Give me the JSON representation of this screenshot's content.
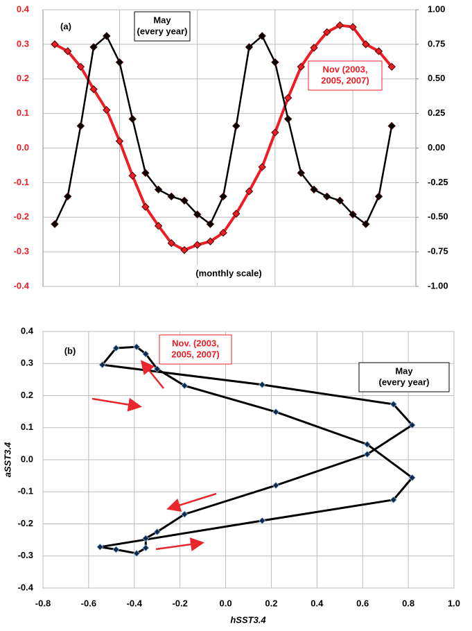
{
  "chart_data": [
    {
      "type": "line",
      "label": "(a)",
      "categories": [
        null,
        null,
        null,
        null,
        null,
        null,
        null,
        null,
        null,
        null,
        null,
        null,
        null,
        null,
        null,
        null,
        null,
        null,
        null,
        null,
        null,
        null,
        null,
        null,
        null,
        null,
        null
      ],
      "series": [
        {
          "color": "#ee1c25",
          "axis": "y",
          "values": [
            0.3,
            0.28,
            0.235,
            0.17,
            0.11,
            0.02,
            -0.08,
            -0.17,
            -0.225,
            -0.275,
            -0.295,
            -0.28,
            -0.27,
            -0.245,
            -0.19,
            -0.125,
            -0.055,
            0.045,
            0.145,
            0.235,
            0.29,
            0.335,
            0.355,
            0.35,
            0.3,
            0.28,
            0.235
          ]
        },
        {
          "color": "#000000",
          "axis": "y2",
          "values": [
            -0.55,
            -0.35,
            0.16,
            0.73,
            0.81,
            0.62,
            0.21,
            -0.18,
            -0.3,
            -0.35,
            -0.38,
            -0.48,
            -0.55,
            -0.35,
            0.16,
            0.73,
            0.81,
            0.62,
            0.21,
            -0.18,
            -0.3,
            -0.35,
            -0.38,
            -0.48,
            -0.55,
            -0.35,
            0.16
          ]
        }
      ],
      "ylim": [
        -0.4,
        0.4
      ],
      "yticks": [
        -0.4,
        -0.3,
        -0.2,
        -0.1,
        {
          "value": 0,
          "label": "0.0"
        },
        0.1,
        0.2,
        0.3,
        0.4
      ],
      "ytick_color": "#ee1c25",
      "y2lim": [
        -1,
        1
      ],
      "y2ticks": [
        {
          "value": -1,
          "label": "-1.00"
        },
        {
          "value": -0.75,
          "label": "-0.75"
        },
        {
          "value": -0.5,
          "label": "-0.50"
        },
        {
          "value": -0.25,
          "label": "-0.25"
        },
        {
          "value": 0,
          "label": "0.00"
        },
        {
          "value": 0.25,
          "label": "0.25"
        },
        {
          "value": 0.5,
          "label": "0.50"
        },
        {
          "value": 0.75,
          "label": "0.75"
        },
        {
          "value": 1,
          "label": "1.00"
        }
      ],
      "grid": true,
      "annotations": [
        {
          "lines": [
            "May",
            "(every year)"
          ],
          "color": "#000000"
        },
        {
          "lines": [
            "Nov (2003,",
            "2005, 2007)"
          ],
          "color": "#ee1c25"
        },
        {
          "lines": [
            "(monthly scale)"
          ],
          "color": "#000000"
        }
      ]
    },
    {
      "type": "scatter",
      "label": "(b)",
      "x": [
        0.735,
        0.16,
        -0.54,
        -0.48,
        -0.39,
        -0.35,
        -0.3,
        -0.18,
        0.22,
        0.62,
        0.817,
        0.735,
        0.16,
        -0.55,
        -0.48,
        -0.39,
        -0.35,
        -0.35,
        -0.3,
        -0.18,
        0.22,
        0.62,
        0.817,
        0.735
      ],
      "y": [
        0.173,
        0.234,
        0.296,
        0.348,
        0.352,
        0.33,
        0.283,
        0.231,
        0.149,
        0.048,
        -0.056,
        -0.125,
        -0.19,
        -0.272,
        -0.28,
        -0.292,
        -0.275,
        -0.245,
        -0.225,
        -0.17,
        -0.08,
        0.017,
        0.108,
        0.173
      ],
      "color": "#000000",
      "xlabel": "hSST3.4",
      "ylabel": "aSST3.4",
      "xlim": [
        -0.8,
        1.0
      ],
      "xticks": [
        -0.8,
        -0.6,
        -0.4,
        -0.2,
        {
          "value": 0,
          "label": "0.0"
        },
        0.2,
        0.4,
        0.6,
        0.8,
        {
          "value": 1,
          "label": "1.0"
        }
      ],
      "ylim": [
        -0.4,
        0.4
      ],
      "yticks": [
        -0.4,
        -0.3,
        -0.2,
        -0.1,
        {
          "value": 0,
          "label": "0.0"
        },
        0.1,
        0.2,
        0.3,
        0.4
      ],
      "grid": true,
      "annotations": [
        {
          "lines": [
            "Nov. (2003,",
            "2005, 2007)"
          ],
          "color": "#ee1c25"
        },
        {
          "lines": [
            "May",
            "(every year)"
          ],
          "color": "#000000"
        }
      ]
    }
  ]
}
